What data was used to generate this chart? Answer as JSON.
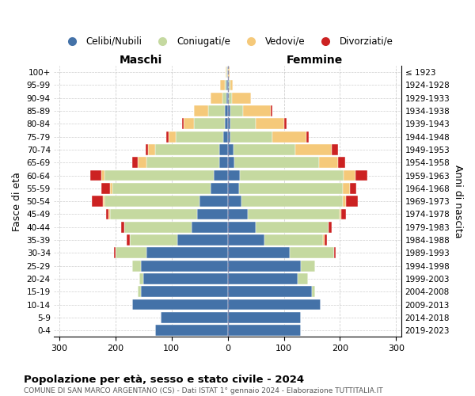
{
  "age_groups": [
    "0-4",
    "5-9",
    "10-14",
    "15-19",
    "20-24",
    "25-29",
    "30-34",
    "35-39",
    "40-44",
    "45-49",
    "50-54",
    "55-59",
    "60-64",
    "65-69",
    "70-74",
    "75-79",
    "80-84",
    "85-89",
    "90-94",
    "95-99",
    "100+"
  ],
  "birth_years": [
    "2019-2023",
    "2014-2018",
    "2009-2013",
    "2004-2008",
    "1999-2003",
    "1994-1998",
    "1989-1993",
    "1984-1988",
    "1979-1983",
    "1974-1978",
    "1969-1973",
    "1964-1968",
    "1959-1963",
    "1954-1958",
    "1949-1953",
    "1944-1948",
    "1939-1943",
    "1934-1938",
    "1929-1933",
    "1924-1928",
    "≤ 1923"
  ],
  "colors": {
    "celibi": "#4472a8",
    "coniugati": "#c5d9a0",
    "vedovi": "#f5c97a",
    "divorziati": "#cc2222"
  },
  "males": {
    "celibi": [
      130,
      120,
      170,
      155,
      150,
      155,
      145,
      90,
      65,
      55,
      50,
      30,
      25,
      15,
      15,
      8,
      5,
      5,
      2,
      2,
      1
    ],
    "coniugati": [
      0,
      0,
      0,
      5,
      8,
      15,
      55,
      85,
      120,
      155,
      170,
      175,
      195,
      130,
      115,
      85,
      55,
      30,
      8,
      3,
      1
    ],
    "vedovi": [
      0,
      0,
      0,
      0,
      0,
      0,
      0,
      0,
      0,
      2,
      2,
      5,
      5,
      15,
      12,
      12,
      18,
      25,
      20,
      8,
      2
    ],
    "divorziati": [
      0,
      0,
      0,
      0,
      0,
      0,
      3,
      5,
      5,
      5,
      20,
      15,
      20,
      10,
      5,
      5,
      3,
      0,
      0,
      0,
      0
    ]
  },
  "females": {
    "celibi": [
      130,
      130,
      165,
      150,
      125,
      130,
      110,
      65,
      50,
      35,
      25,
      20,
      22,
      12,
      10,
      5,
      5,
      5,
      2,
      2,
      1
    ],
    "coniugati": [
      0,
      0,
      0,
      5,
      18,
      25,
      80,
      105,
      130,
      165,
      180,
      185,
      185,
      150,
      110,
      75,
      45,
      22,
      5,
      2,
      0
    ],
    "vedovi": [
      0,
      0,
      0,
      0,
      0,
      0,
      0,
      2,
      0,
      2,
      5,
      12,
      20,
      35,
      65,
      60,
      50,
      50,
      35,
      5,
      2
    ],
    "divorziati": [
      0,
      0,
      0,
      0,
      0,
      0,
      3,
      5,
      5,
      8,
      22,
      12,
      22,
      12,
      12,
      5,
      5,
      3,
      0,
      0,
      0
    ]
  },
  "title": "Popolazione per età, sesso e stato civile - 2024",
  "subtitle": "COMUNE DI SAN MARCO ARGENTANO (CS) - Dati ISTAT 1° gennaio 2024 - Elaborazione TUTTITALIA.IT",
  "xlabel_left": "Maschi",
  "xlabel_right": "Femmine",
  "ylabel_left": "Fasce di età",
  "ylabel_right": "Anni di nascita",
  "xlim": 310,
  "legend_labels": [
    "Celibi/Nubili",
    "Coniugati/e",
    "Vedovi/e",
    "Divorziati/e"
  ],
  "bg_color": "#ffffff",
  "grid_color": "#bbbbbb",
  "bar_height": 0.85
}
